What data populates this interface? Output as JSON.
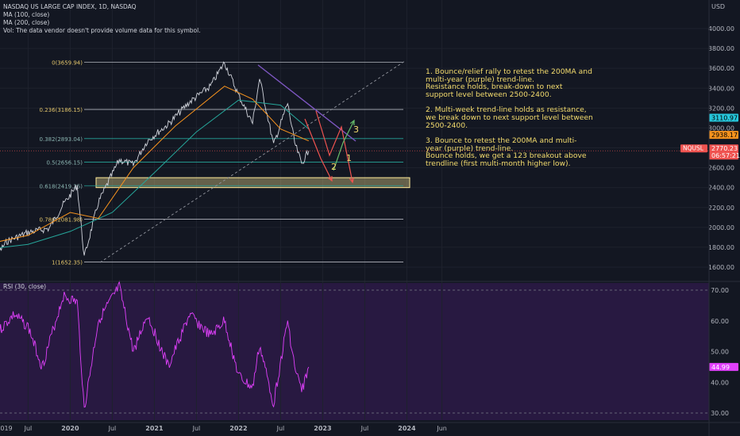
{
  "header": {
    "title": "NASDAQ US LARGE CAP INDEX, 1D, NASDAQ",
    "ma100": "MA (100, close)",
    "ma200": "MA (200, close)",
    "vol_note": "Vol: The data vendor doesn't provide volume data for this symbol."
  },
  "currency": "USD",
  "price_axis": {
    "ticks": [
      "4000.00",
      "3800.00",
      "3600.00",
      "3400.00",
      "3200.00",
      "3000.00",
      "2800.00",
      "2600.00",
      "2400.00",
      "2200.00",
      "2000.00",
      "1800.00",
      "1600.00"
    ]
  },
  "price_badges": {
    "ma_blue": "3110.97",
    "ma_orange": "2938.17",
    "symbol": "NQUSL",
    "last": "2770.23",
    "countdown": "06:57:21"
  },
  "rsi": {
    "label": "RSI (30, close)",
    "ticks": [
      "70.00",
      "60.00",
      "50.00",
      "40.00",
      "30.00"
    ],
    "last": "44.99"
  },
  "time_axis": {
    "labels": [
      "019",
      "Jul",
      "2020",
      "Jul",
      "2021",
      "Jul",
      "2022",
      "Jul",
      "2023",
      "Jul",
      "2024",
      "Jun"
    ]
  },
  "fib": [
    {
      "label": "0(3659.94)"
    },
    {
      "label": "0.236(3186.15)"
    },
    {
      "label": "0.382(2893.04)"
    },
    {
      "label": "0.5(2656.15)"
    },
    {
      "label": "0.618(2419.25)"
    },
    {
      "label": "0.786(2081.98)"
    },
    {
      "label": "1(1652.35)"
    }
  ],
  "markers": {
    "m1": "1",
    "m2": "2",
    "m3": "3"
  },
  "annotation": {
    "p1": "1. Bounce/relief rally to retest the 200MA and\nmulti-year (purple) trend-line.\nResistance holds, break-down to next\nsupport level between 2500-2400.",
    "p2": "2. Multi-week trend-line holds as resistance,\nwe break down to next support level between\n2500-2400.",
    "p3": "3. Bounce to retest the 200MA and multi-\nyear (purple) trend-line.\nBounce holds, we get a 123 breakout above\ntrendline (first multi-month higher low)."
  },
  "colors": {
    "background": "#131722",
    "rsi_fill": "#2b1a45",
    "rsi_line": "#e040fb",
    "ma_blue": "#26a69a",
    "ma_orange": "#f7931e",
    "trend_purple": "#7e57c2",
    "zone": "#ffeb99",
    "up_arrow": "#66bb6a",
    "down_arrow": "#ef5350",
    "annotation": "#f5dd6e"
  },
  "chart_data": {
    "type": "line",
    "title": "NASDAQ US LARGE CAP INDEX, 1D, NASDAQ",
    "x_range": [
      "2019-01",
      "2024-08"
    ],
    "ylim": [
      1550,
      4100
    ],
    "fib_levels": [
      3659.94,
      3186.15,
      2893.04,
      2656.15,
      2419.25,
      2081.98,
      1652.35
    ],
    "support_zone": [
      2400,
      2500
    ],
    "last_price": 2770.23,
    "ma_values": {
      "ma100": 2938.17,
      "ma200": 3110.97
    },
    "price_path": [
      [
        "2019-01",
        1580
      ],
      [
        "2019-04",
        1860
      ],
      [
        "2019-07",
        1950
      ],
      [
        "2019-10",
        1990
      ],
      [
        "2019-12",
        2230
      ],
      [
        "2020-02",
        2420
      ],
      [
        "2020-03",
        1700
      ],
      [
        "2020-05",
        2250
      ],
      [
        "2020-08",
        2680
      ],
      [
        "2020-10",
        2630
      ],
      [
        "2020-12",
        2870
      ],
      [
        "2021-03",
        3040
      ],
      [
        "2021-06",
        3260
      ],
      [
        "2021-09",
        3420
      ],
      [
        "2021-11",
        3659.94
      ],
      [
        "2022-01",
        3330
      ],
      [
        "2022-03",
        3050
      ],
      [
        "2022-04",
        3500
      ],
      [
        "2022-06",
        2830
      ],
      [
        "2022-08",
        3250
      ],
      [
        "2022-09",
        2850
      ],
      [
        "2022-10",
        2640
      ],
      [
        "2022-11",
        2770
      ]
    ],
    "rsi": {
      "ylim": [
        29,
        72
      ],
      "overbought": 70,
      "oversold": 30,
      "path": [
        [
          "2019-01",
          52
        ],
        [
          "2019-05",
          62
        ],
        [
          "2019-07",
          58
        ],
        [
          "2019-09",
          45
        ],
        [
          "2019-12",
          68
        ],
        [
          "2020-02",
          66
        ],
        [
          "2020-03",
          31
        ],
        [
          "2020-05",
          60
        ],
        [
          "2020-08",
          71
        ],
        [
          "2020-10",
          50
        ],
        [
          "2020-12",
          62
        ],
        [
          "2021-03",
          45
        ],
        [
          "2021-06",
          62
        ],
        [
          "2021-09",
          55
        ],
        [
          "2021-11",
          60
        ],
        [
          "2022-01",
          42
        ],
        [
          "2022-03",
          38
        ],
        [
          "2022-04",
          52
        ],
        [
          "2022-06",
          33
        ],
        [
          "2022-08",
          60
        ],
        [
          "2022-09",
          45
        ],
        [
          "2022-10",
          37
        ],
        [
          "2022-11",
          45
        ]
      ]
    }
  }
}
